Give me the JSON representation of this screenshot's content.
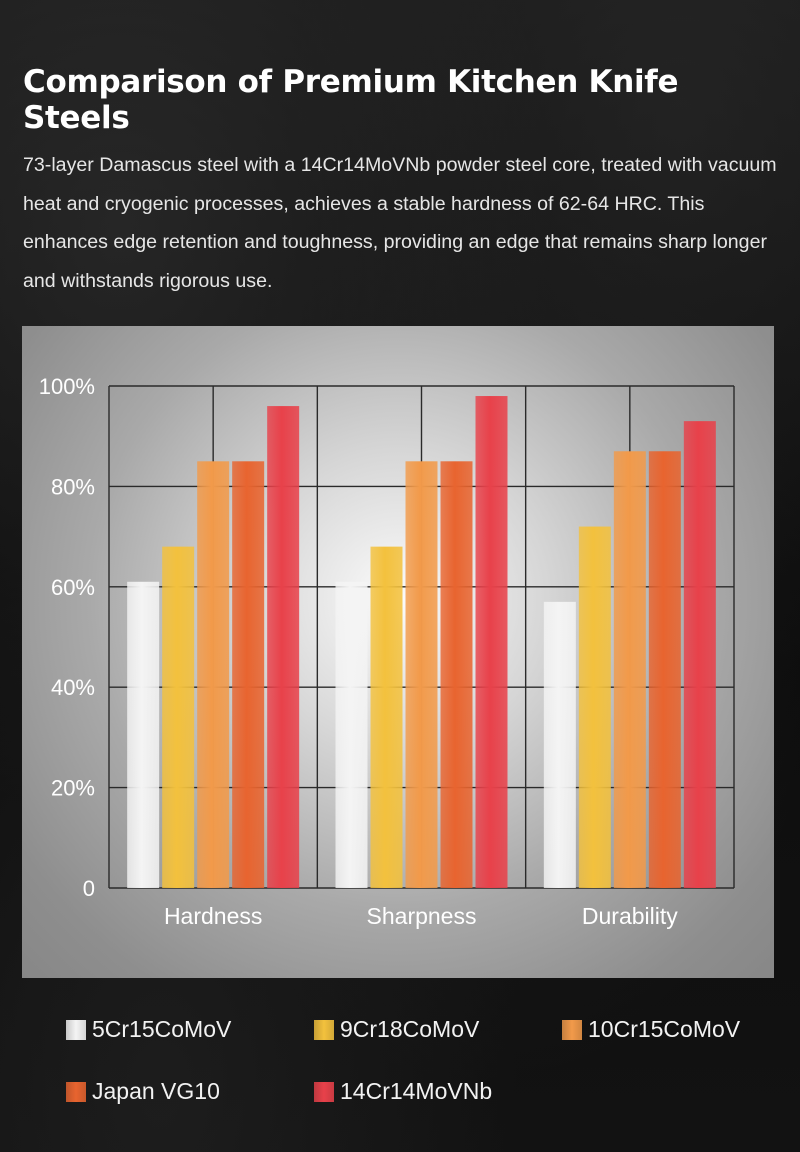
{
  "header": {
    "title": "Comparison of Premium Kitchen Knife Steels",
    "description": "73-layer Damascus steel with a 14Cr14MoVNb powder steel core, treated with vacuum heat and cryogenic processes, achieves a stable hardness of 62-64 HRC. This enhances edge retention and toughness, providing an edge that remains sharp longer and withstands rigorous use."
  },
  "chart_data": {
    "type": "bar",
    "categories": [
      "Hardness",
      "Sharpness",
      "Durability"
    ],
    "series": [
      {
        "name": "5Cr15CoMoV",
        "color": "#f4f4f4",
        "values": [
          61,
          61,
          57
        ]
      },
      {
        "name": "9Cr18CoMoV",
        "color": "#f3c13d",
        "values": [
          68,
          68,
          72
        ]
      },
      {
        "name": "10Cr15CoMoV",
        "color": "#f29a4a",
        "values": [
          85,
          85,
          87
        ]
      },
      {
        "name": "Japan VG10",
        "color": "#e8642f",
        "values": [
          85,
          85,
          87
        ]
      },
      {
        "name": "14Cr14MoVNb",
        "color": "#e8414a",
        "values": [
          96,
          98,
          93
        ]
      }
    ],
    "yticks": [
      "0",
      "20%",
      "40%",
      "60%",
      "80%",
      "100%"
    ],
    "ylim": [
      0,
      100
    ],
    "grid": true,
    "legend_position": "bottom"
  }
}
